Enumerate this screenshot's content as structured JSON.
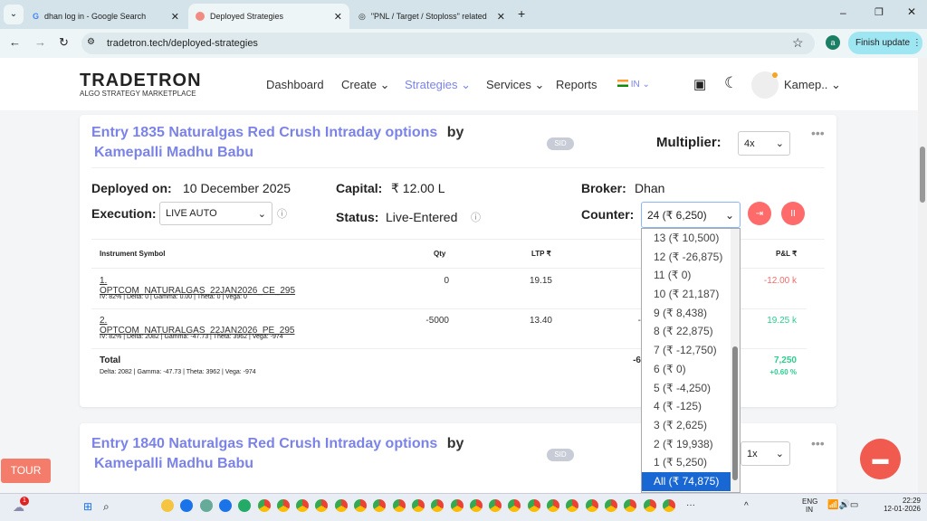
{
  "browser": {
    "tabs": [
      {
        "title": "dhan log in - Google Search",
        "icon": "google-icon"
      },
      {
        "title": "Deployed Strategies",
        "icon": "tradetron-icon",
        "active": true
      },
      {
        "title": "\"PNL / Target / Stoploss\" related k",
        "icon": "globe-icon"
      }
    ],
    "url": "tradetron.tech/deployed-strategies",
    "profile_initial": "a",
    "finish_update": "Finish update"
  },
  "header": {
    "logo": "TRADETRON",
    "logo_sub": "ALGO STRATEGY MARKETPLACE",
    "nav": [
      "Dashboard",
      "Create",
      "Strategies",
      "Services",
      "Reports"
    ],
    "region": "IN",
    "user": "Kamep.."
  },
  "strategies": [
    {
      "title": "Entry 1835 Naturalgas Red Crush Intraday options",
      "by": "by",
      "author": "Kamepalli Madhu Babu",
      "badge": "SID",
      "multiplier_label": "Multiplier:",
      "multiplier": "4x",
      "deployed_label": "Deployed on:",
      "deployed": "10 December 2025",
      "capital_label": "Capital:",
      "capital": "₹ 12.00 L",
      "broker_label": "Broker:",
      "broker": "Dhan",
      "execution_label": "Execution:",
      "execution": "LIVE AUTO",
      "status_label": "Status:",
      "status": "Live-Entered",
      "counter_label": "Counter:",
      "counter": "24 (₹ 6,250)",
      "table": {
        "headers": [
          "Instrument Symbol",
          "Qty",
          "LTP ₹",
          "P&L ₹"
        ],
        "rows": [
          {
            "symbol": "1. OPTCOM_NATURALGAS_22JAN2026_CE_295",
            "greeks": "IV: 82% | Delta: 0 | Gamma: 0.00 | Theta: 0 | Vega: 0",
            "qty": "0",
            "ltp": "19.15",
            "pnl": "-12.00 k"
          },
          {
            "symbol": "2. OPTCOM_NATURALGAS_22JAN2026_PE_295",
            "greeks": "IV: 82% | Delta: 2082 | Gamma: -47.73 | Theta: 3962 | Vega: -974",
            "qty": "-5000",
            "ltp": "13.40",
            "partial": "-",
            "pnl": "19.25 k"
          }
        ],
        "total": {
          "label": "Total",
          "greeks": "Delta: 2082 | Gamma: -47.73  | Theta: 3962 | Vega: -974",
          "partial": "-6",
          "pnl": "7,250",
          "pnl_pct": "+0.60 %"
        }
      }
    },
    {
      "title": "Entry 1840 Naturalgas Red Crush Intraday options",
      "by": "by",
      "author": "Kamepalli Madhu Babu",
      "badge": "SID",
      "multiplier": "1x"
    }
  ],
  "counter_options": [
    "13 (₹ 10,500)",
    "12 (₹ -26,875)",
    "11 (₹ 0)",
    "10 (₹ 21,187)",
    "9 (₹ 8,438)",
    "8 (₹ 22,875)",
    "7 (₹ -12,750)",
    "6 (₹ 0)",
    "5 (₹ -4,250)",
    "4 (₹ -125)",
    "3 (₹ 2,625)",
    "2 (₹ 19,938)",
    "1 (₹ 5,250)",
    "All (₹ 74,875)"
  ],
  "tour": "TOUR",
  "taskbar": {
    "lang": "ENG",
    "region": "IN",
    "time": "22:29",
    "date": "12-01-2026",
    "notif": "1"
  },
  "colors": {
    "accent": "#7b83e8",
    "loss": "#f26b6b",
    "profit": "#2ecc8f",
    "select_highlight": "#1967d2"
  }
}
